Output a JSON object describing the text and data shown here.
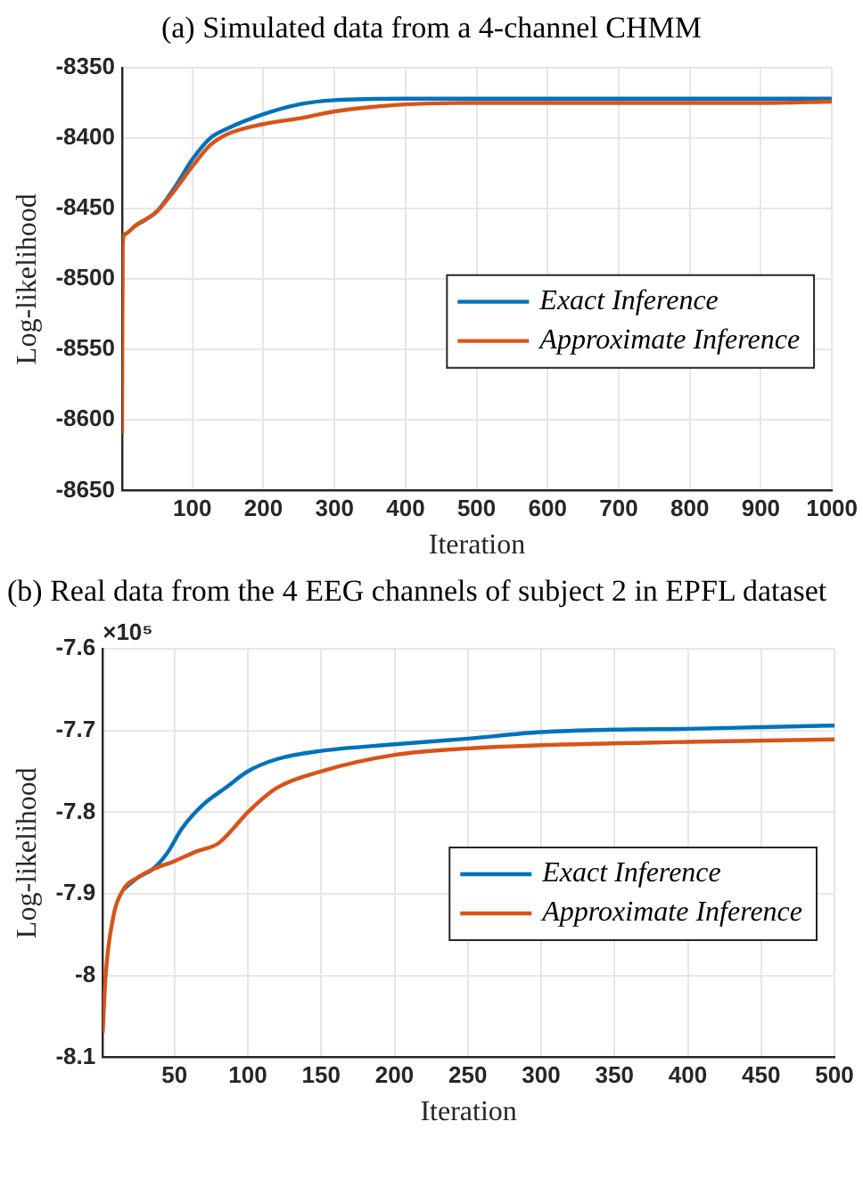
{
  "chart_data": [
    {
      "type": "line",
      "title": "(a)  Simulated data from a 4-channel CHMM",
      "xlabel": "Iteration",
      "ylabel": "Log-likelihood",
      "xlim": [
        1,
        1000
      ],
      "xticks": [
        100,
        200,
        300,
        400,
        500,
        600,
        700,
        800,
        900,
        1000
      ],
      "ylim": [
        -8650,
        -8350
      ],
      "yticks": [
        -8650,
        -8600,
        -8550,
        -8500,
        -8450,
        -8400,
        -8350
      ],
      "grid": true,
      "legend": "right",
      "line_style": "solid",
      "marker": "none",
      "series": [
        {
          "name": "Exact Inference",
          "color": "#0072bd",
          "x": [
            20,
            50,
            75,
            100,
            125,
            150,
            200,
            250,
            300,
            400,
            500,
            600,
            700,
            800,
            900,
            1000
          ],
          "values": [
            -8462,
            -8452,
            -8435,
            -8415,
            -8400,
            -8393,
            -8383,
            -8376,
            -8373,
            -8372,
            -8372,
            -8372,
            -8372,
            -8372,
            -8372,
            -8372
          ]
        },
        {
          "name": "Approximate Inference",
          "color": "#d95319",
          "x": [
            1,
            2,
            5,
            20,
            50,
            75,
            100,
            125,
            150,
            200,
            250,
            300,
            350,
            400,
            500,
            600,
            700,
            800,
            900,
            1000
          ],
          "values": [
            -8610,
            -8475,
            -8468,
            -8462,
            -8452,
            -8437,
            -8420,
            -8405,
            -8397,
            -8390,
            -8386,
            -8381,
            -8378,
            -8376,
            -8375,
            -8375,
            -8375,
            -8375,
            -8375,
            -8374
          ]
        }
      ]
    },
    {
      "type": "line",
      "title": "(b)  Real data from the 4 EEG channels of subject 2 in EPFL dataset",
      "xlabel": "Iteration",
      "ylabel": "Log-likelihood",
      "annotations": [
        "×10⁵"
      ],
      "xlim": [
        1,
        500
      ],
      "xticks": [
        50,
        100,
        150,
        200,
        250,
        300,
        350,
        400,
        450,
        500
      ],
      "ylim": [
        -8.1,
        -7.6
      ],
      "yticks": [
        -8.1,
        -8,
        -7.9,
        -7.8,
        -7.7,
        -7.6
      ],
      "grid": true,
      "legend": "right",
      "line_style": "solid",
      "marker": "none",
      "series": [
        {
          "name": "Exact Inference",
          "color": "#0072bd",
          "x": [
            15,
            25,
            35,
            45,
            55,
            70,
            85,
            100,
            120,
            150,
            200,
            250,
            300,
            350,
            400,
            450,
            500
          ],
          "values": [
            -7.895,
            -7.88,
            -7.87,
            -7.85,
            -7.82,
            -7.79,
            -7.77,
            -7.75,
            -7.735,
            -7.725,
            -7.717,
            -7.71,
            -7.702,
            -7.699,
            -7.698,
            -7.696,
            -7.694
          ]
        },
        {
          "name": "Approximate Inference",
          "color": "#d95319",
          "x": [
            1,
            3,
            8,
            15,
            25,
            35,
            50,
            65,
            80,
            90,
            100,
            120,
            150,
            200,
            250,
            300,
            400,
            500
          ],
          "values": [
            -8.07,
            -8.0,
            -7.93,
            -7.895,
            -7.88,
            -7.87,
            -7.86,
            -7.848,
            -7.838,
            -7.82,
            -7.8,
            -7.77,
            -7.75,
            -7.73,
            -7.722,
            -7.718,
            -7.714,
            -7.711
          ]
        }
      ]
    }
  ]
}
